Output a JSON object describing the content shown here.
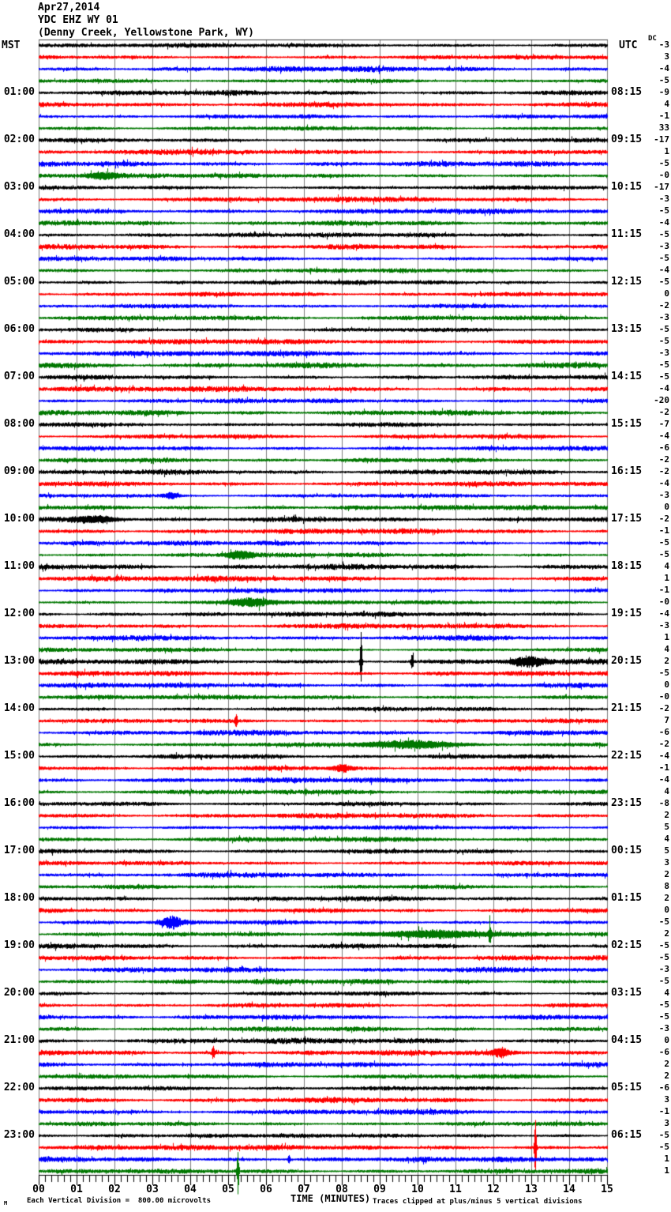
{
  "title": {
    "date": "Apr27,2014",
    "station": "YDC EHZ WY 01",
    "location": "(Denny Creek, Yellowstone Park, WY)"
  },
  "headers": {
    "left": "MST",
    "right": "UTC",
    "dc": "DC"
  },
  "footer": {
    "mark": "M",
    "scale_note": "Each Vertical Division =  800.00 microvolts",
    "xaxis_title": "TIME (MINUTES)",
    "clip_note": "Traces clipped at plus/minus 5 vertical divisions"
  },
  "chart_data": {
    "type": "line",
    "subtype": "helicorder-seismogram",
    "xlabel": "TIME (MINUTES)",
    "x_range_minutes": [
      0,
      15
    ],
    "minutes_per_line": 15,
    "lines_per_hour": 4,
    "total_lines": 96,
    "start_time_mst": "00:00",
    "trace_colors": [
      "#000000",
      "#ff0000",
      "#0000ff",
      "#007700"
    ],
    "grid_color": "#808080",
    "clip_divisions": 5,
    "microvolts_per_division": "800.00",
    "x_ticks": [
      "00",
      "01",
      "02",
      "03",
      "04",
      "05",
      "06",
      "07",
      "08",
      "09",
      "10",
      "11",
      "12",
      "13",
      "14",
      "15"
    ],
    "mst_hour_labels": [
      "01:00",
      "02:00",
      "03:00",
      "04:00",
      "05:00",
      "06:00",
      "07:00",
      "08:00",
      "09:00",
      "10:00",
      "11:00",
      "12:00",
      "13:00",
      "14:00",
      "15:00",
      "16:00",
      "17:00",
      "18:00",
      "19:00",
      "20:00",
      "21:00",
      "22:00",
      "23:00"
    ],
    "utc_hour_labels": [
      "08:15",
      "09:15",
      "10:15",
      "11:15",
      "12:15",
      "13:15",
      "14:15",
      "15:15",
      "16:15",
      "17:15",
      "18:15",
      "19:15",
      "20:15",
      "21:15",
      "22:15",
      "23:15",
      "00:15",
      "01:15",
      "02:15",
      "03:15",
      "04:15",
      "05:15",
      "06:15"
    ],
    "dc_offsets": [
      "-3",
      "3",
      "-4",
      "-5",
      "-9",
      "4",
      "-1",
      "33",
      "-17",
      "1",
      "-5",
      "-0",
      "-17",
      "-3",
      "-5",
      "-4",
      "-5",
      "-3",
      "-5",
      "-4",
      "-5",
      "0",
      "-2",
      "-3",
      "-5",
      "-5",
      "-3",
      "-5",
      "-5",
      "-4",
      "-20",
      "-2",
      "-7",
      "-4",
      "-6",
      "-2",
      "-2",
      "-4",
      "-3",
      "0",
      "-2",
      "-1",
      "-5",
      "-5",
      "4",
      "1",
      "-1",
      "-0",
      "-4",
      "-3",
      "1",
      "4",
      "2",
      "-5",
      "0",
      "-0",
      "-2",
      "7",
      "-6",
      "-2",
      "-4",
      "-1",
      "-4",
      "4",
      "-8",
      "2",
      "5",
      "4",
      "5",
      "3",
      "2",
      "8",
      "2",
      "0",
      "-5",
      "2",
      "-5",
      "-5",
      "-3",
      "-5",
      "4",
      "-5",
      "-5",
      "-3",
      "0",
      "-6",
      "2",
      "2",
      "-6",
      "3",
      "-1",
      "3",
      "-5",
      "-5",
      "1",
      "1"
    ],
    "events": [
      {
        "row": 12,
        "minute": 1.7,
        "amp": 4,
        "width": 0.6,
        "kind": "burst"
      },
      {
        "row": 39,
        "minute": 3.5,
        "amp": 4,
        "width": 0.25,
        "kind": "burst"
      },
      {
        "row": 41,
        "minute": 1.5,
        "amp": 4,
        "width": 0.8,
        "kind": "burst"
      },
      {
        "row": 44,
        "minute": 5.3,
        "amp": 5,
        "width": 0.5,
        "kind": "burst"
      },
      {
        "row": 48,
        "minute": 5.6,
        "amp": 5,
        "width": 0.8,
        "kind": "burst"
      },
      {
        "row": 53,
        "minute": 8.5,
        "amp": 38,
        "width": 0.04,
        "kind": "spike"
      },
      {
        "row": 53,
        "minute": 9.85,
        "amp": 12,
        "width": 0.04,
        "kind": "spike"
      },
      {
        "row": 53,
        "minute": 12.9,
        "amp": 6,
        "width": 0.6,
        "kind": "burst"
      },
      {
        "row": 58,
        "minute": 5.2,
        "amp": 9,
        "width": 0.05,
        "kind": "spike"
      },
      {
        "row": 60,
        "minute": 9.8,
        "amp": 5,
        "width": 1.6,
        "kind": "burst"
      },
      {
        "row": 62,
        "minute": 8.0,
        "amp": 4,
        "width": 0.3,
        "kind": "burst"
      },
      {
        "row": 75,
        "minute": 3.5,
        "amp": 7,
        "width": 0.35,
        "kind": "burst"
      },
      {
        "row": 76,
        "minute": 10.3,
        "amp": 4.5,
        "width": 2.2,
        "kind": "burst"
      },
      {
        "row": 76,
        "minute": 11.9,
        "amp": 11,
        "width": 0.05,
        "kind": "spike"
      },
      {
        "row": 86,
        "minute": 4.6,
        "amp": 9,
        "width": 0.05,
        "kind": "spike"
      },
      {
        "row": 86,
        "minute": 12.2,
        "amp": 5,
        "width": 0.25,
        "kind": "burst"
      },
      {
        "row": 94,
        "minute": 13.1,
        "amp": 37,
        "width": 0.04,
        "kind": "spike"
      },
      {
        "row": 95,
        "minute": 6.6,
        "amp": 5,
        "width": 0.05,
        "kind": "spike"
      },
      {
        "row": 96,
        "minute": 5.25,
        "amp": 30,
        "width": 0.04,
        "kind": "spike"
      }
    ]
  }
}
